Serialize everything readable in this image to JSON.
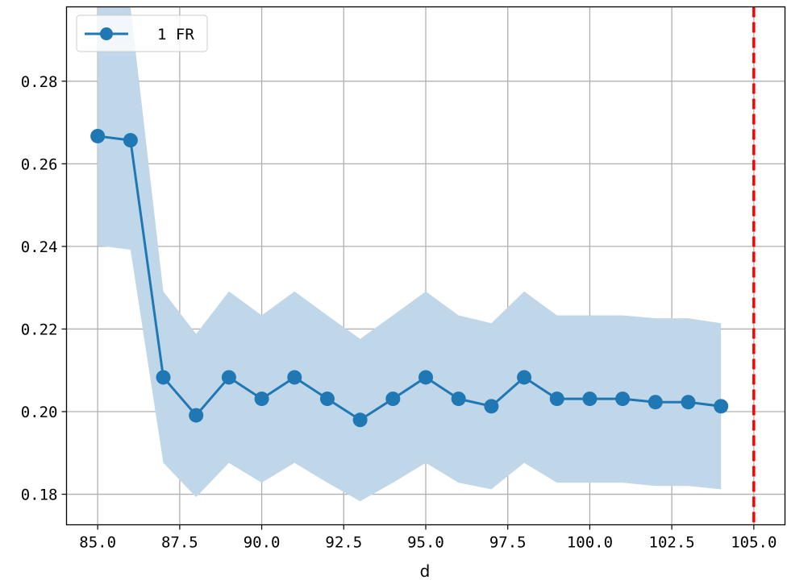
{
  "chart_data": {
    "type": "line",
    "title": "",
    "xlabel": "d",
    "ylabel": "",
    "xlim": [
      84.05,
      105.95
    ],
    "ylim": [
      0.1726,
      0.298
    ],
    "xticks": [
      "85.0",
      "87.5",
      "90.0",
      "92.5",
      "95.0",
      "97.5",
      "100.0",
      "102.5",
      "105.0"
    ],
    "yticks": [
      "0.18",
      "0.20",
      "0.22",
      "0.24",
      "0.26",
      "0.28"
    ],
    "grid": true,
    "legend_position": "top-left",
    "series": [
      {
        "name": "1 FR",
        "color": "#1f77b4",
        "marker": "circle",
        "x": [
          85,
          86,
          87,
          88,
          89,
          90,
          91,
          92,
          93,
          94,
          95,
          96,
          97,
          98,
          99,
          100,
          101,
          102,
          103,
          104
        ],
        "y": [
          0.2667,
          0.2657,
          0.2083,
          0.1991,
          0.2083,
          0.2031,
          0.2083,
          0.2031,
          0.198,
          0.2031,
          0.2083,
          0.2031,
          0.2013,
          0.2083,
          0.2031,
          0.2031,
          0.2031,
          0.2023,
          0.2023,
          0.2013
        ],
        "band_upper": [
          0.298,
          0.298,
          0.2291,
          0.2188,
          0.2291,
          0.2233,
          0.2291,
          0.2233,
          0.2176,
          0.2233,
          0.2291,
          0.2233,
          0.2214,
          0.2291,
          0.2233,
          0.2233,
          0.2233,
          0.2226,
          0.2226,
          0.2214
        ],
        "band_lower": [
          0.2402,
          0.2392,
          0.1876,
          0.1793,
          0.1876,
          0.1828,
          0.1876,
          0.1828,
          0.1783,
          0.1828,
          0.1876,
          0.1828,
          0.1812,
          0.1876,
          0.1828,
          0.1828,
          0.1828,
          0.182,
          0.182,
          0.1812
        ],
        "band_color": "#c0d7ea"
      }
    ],
    "vline": {
      "x": 105,
      "color": "#ff0000",
      "style": "dashed"
    }
  }
}
